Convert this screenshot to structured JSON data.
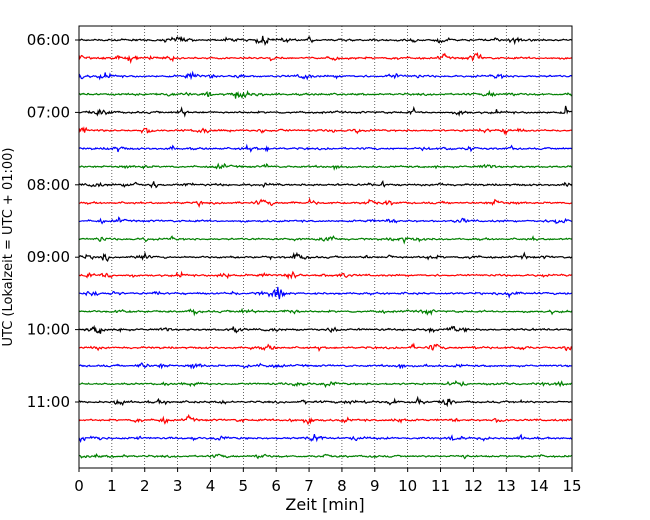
{
  "chart_data": {
    "type": "line",
    "chart_kind": "helicorder",
    "xlabel": "Zeit  [min]",
    "ylabel": "UTC (Lokalzeit = UTC + 01:00)",
    "xlim": [
      0,
      15
    ],
    "x_ticks": [
      0,
      1,
      2,
      3,
      4,
      5,
      6,
      7,
      8,
      9,
      10,
      11,
      12,
      13,
      14,
      15
    ],
    "x_tick_labels": [
      "0",
      "1",
      "2",
      "3",
      "4",
      "5",
      "6",
      "7",
      "8",
      "9",
      "10",
      "11",
      "12",
      "13",
      "14",
      "15"
    ],
    "y_tick_labels": [
      {
        "label": "06:00",
        "trace_index": 0
      },
      {
        "label": "07:00",
        "trace_index": 4
      },
      {
        "label": "08:00",
        "trace_index": 8
      },
      {
        "label": "09:00",
        "trace_index": 12
      },
      {
        "label": "10:00",
        "trace_index": 16
      },
      {
        "label": "11:00",
        "trace_index": 20
      }
    ],
    "trace_interval_min": 15,
    "trace_count": 24,
    "trace_colors": [
      "#000000",
      "#ff0000",
      "#0000ff",
      "#008000"
    ],
    "vertical_grid": "dotted at each minute",
    "horizontal_grid": "none"
  }
}
